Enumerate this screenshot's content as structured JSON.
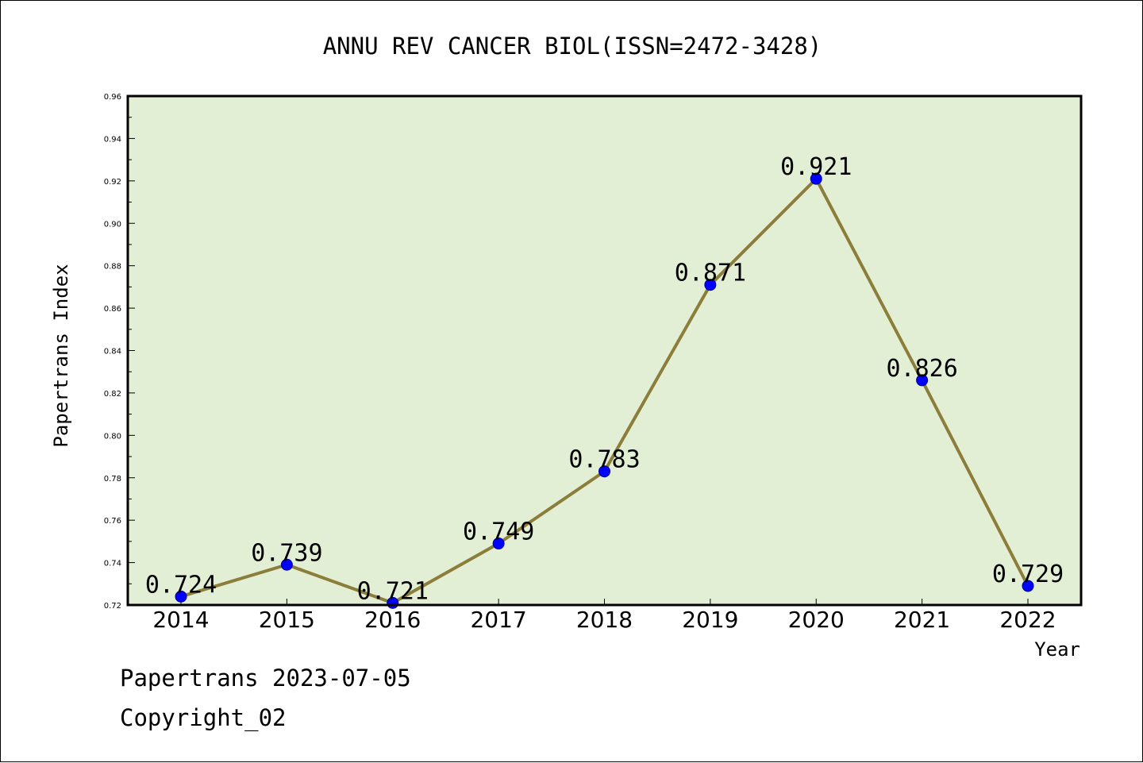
{
  "chart_data": {
    "type": "line",
    "title": "ANNU REV CANCER BIOL(ISSN=2472-3428)",
    "xlabel": "Year",
    "ylabel": "Papertrans Index",
    "categories": [
      "2014",
      "2015",
      "2016",
      "2017",
      "2018",
      "2019",
      "2020",
      "2021",
      "2022"
    ],
    "series": [
      {
        "values": [
          0.724,
          0.739,
          0.721,
          0.749,
          0.783,
          0.871,
          0.921,
          0.826,
          0.729
        ],
        "labels": [
          "0.724",
          "0.739",
          "0.721",
          "0.749",
          "0.783",
          "0.871",
          "0.921",
          "0.826",
          "0.729"
        ],
        "line_color": "#8b7d3a",
        "marker_color": "#0000ff"
      }
    ],
    "ylim": [
      0.72,
      0.96
    ],
    "yticks": [
      "0.72",
      "0.74",
      "0.76",
      "0.78",
      "0.80",
      "0.82",
      "0.84",
      "0.86",
      "0.88",
      "0.90",
      "0.92",
      "0.94",
      "0.96"
    ],
    "grid": false,
    "plot_background": "#e2efd5"
  },
  "footer": {
    "line1": "Papertrans 2023-07-05",
    "line2": "Copyright_02"
  }
}
